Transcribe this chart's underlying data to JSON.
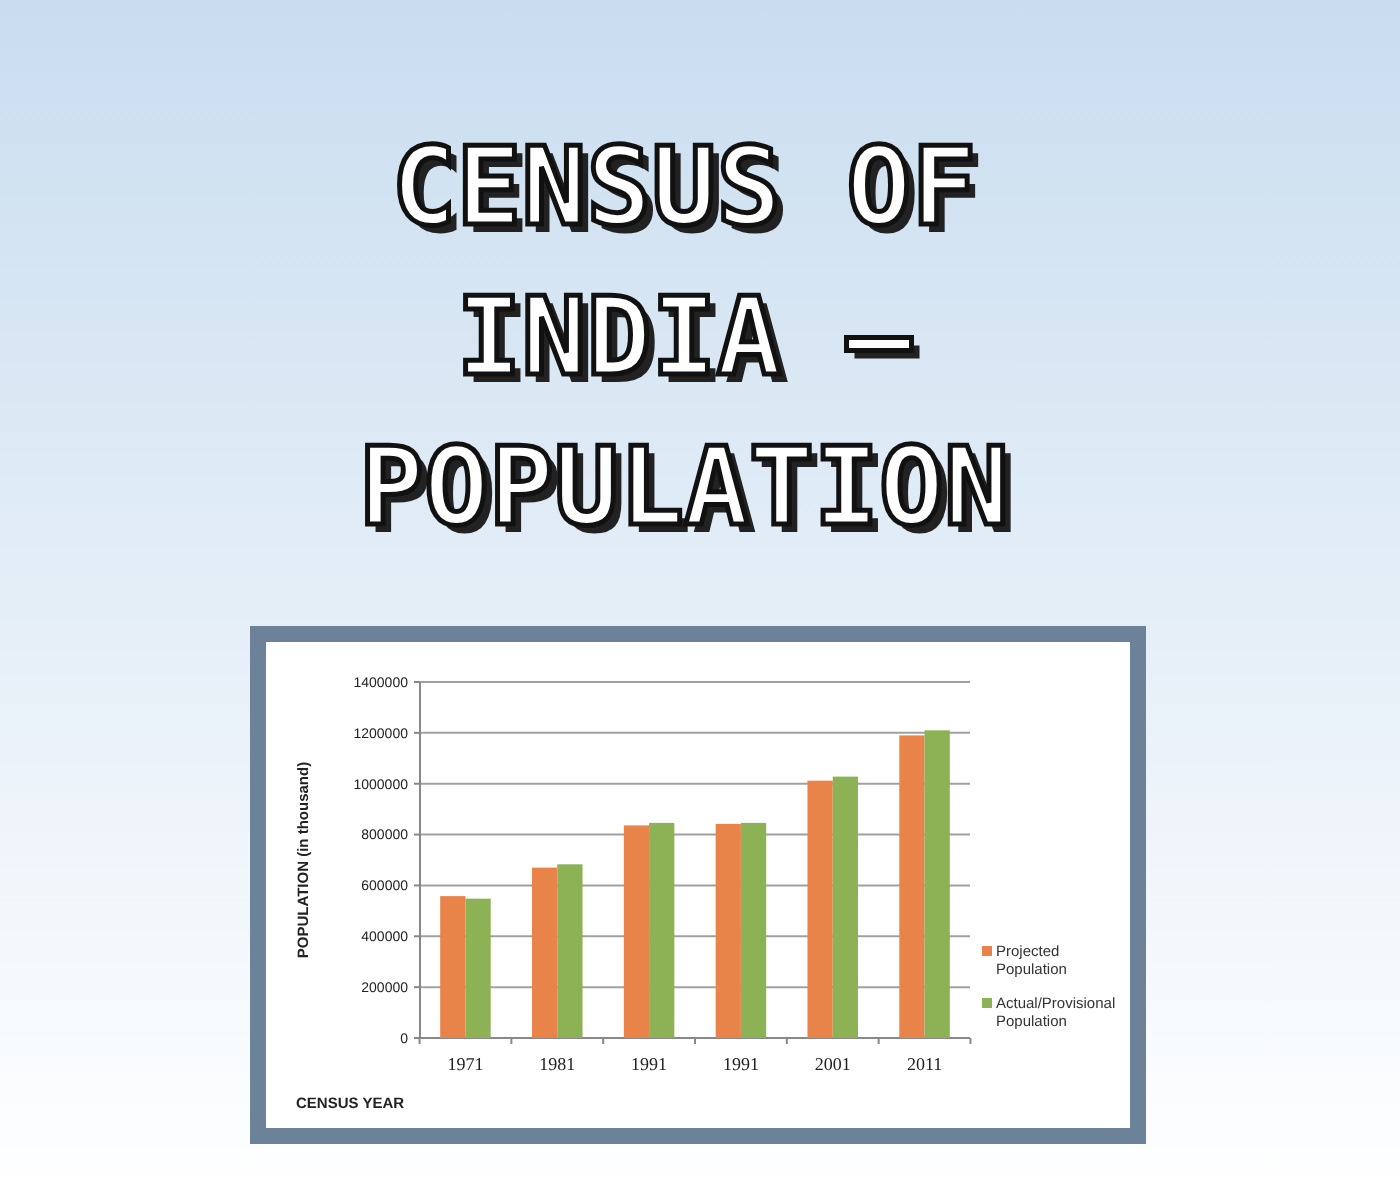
{
  "chart_data": {
    "type": "bar",
    "title": "CENSUS OF INDIA – POPULATION",
    "xlabel": "CENSUS YEAR",
    "ylabel": "POPULATION (in thousand)",
    "categories": [
      "1971",
      "1981",
      "1991",
      "1991",
      "2001",
      "2011"
    ],
    "series": [
      {
        "name": "Projected Population",
        "color": "#e8834a",
        "values": [
          558000,
          670000,
          836000,
          842000,
          1012000,
          1190000
        ]
      },
      {
        "name": "Actual/Provisional Population",
        "color": "#8db255",
        "values": [
          548000,
          683000,
          846000,
          846000,
          1028000,
          1210000
        ]
      }
    ],
    "ylim": [
      0,
      1400000
    ],
    "yticks": [
      0,
      200000,
      400000,
      600000,
      800000,
      1000000,
      1200000,
      1400000
    ],
    "grid": "y",
    "legend": "right"
  }
}
